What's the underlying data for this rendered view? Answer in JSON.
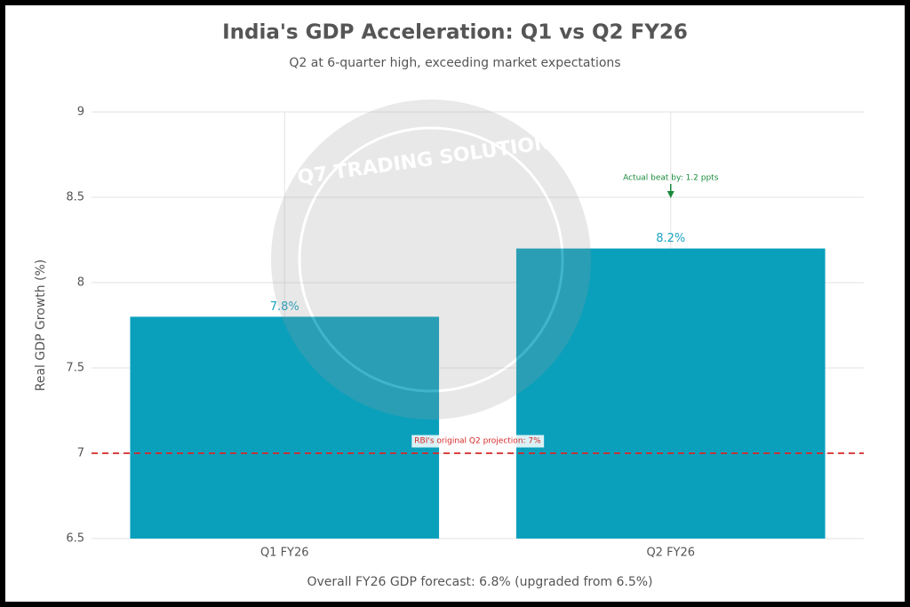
{
  "chart_data": {
    "type": "bar",
    "title": "India's GDP Acceleration: Q1 vs Q2 FY26",
    "subtitle": "Q2 at 6-quarter high, exceeding market expectations",
    "y_label": "Real GDP Growth (%)",
    "footer": "Overall FY26 GDP forecast: 6.8% (upgraded from 6.5%)",
    "categories": [
      "Q1 FY26",
      "Q2 FY26"
    ],
    "values": [
      7.8,
      8.2
    ],
    "value_labels": [
      "7.8%",
      "8.2%"
    ],
    "color": "#0aa0bc",
    "ylim": [
      6.5,
      9
    ],
    "yticks": [
      6.5,
      7,
      7.5,
      8,
      8.5,
      9
    ],
    "grid": true,
    "reference_line": {
      "value": 7,
      "label": "RBI's original Q2 projection: 7%",
      "color": "#d62728"
    },
    "annotation": {
      "text": "Actual beat by: 1.2 ppts",
      "color": "#1a8a3a"
    },
    "watermark": "Q7 TRADING SOLUTIONS"
  }
}
